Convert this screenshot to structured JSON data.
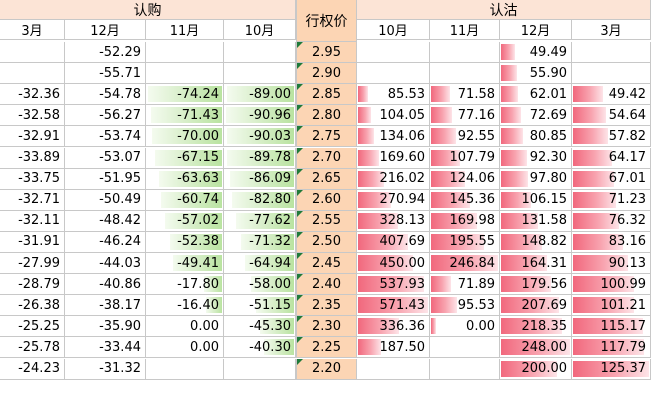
{
  "headers": {
    "call_group": "认购",
    "strike": "行权价",
    "put_group": "认沽",
    "call_months": [
      "3月",
      "12月",
      "11月",
      "10月"
    ],
    "put_months": [
      "10月",
      "11月",
      "12月",
      "3月"
    ]
  },
  "colors": {
    "group_header_bg": "#fce4d6",
    "strike_bg": "#fcd5b4",
    "put_bar": "#f1687d",
    "call_bar": "#b9e3a0",
    "strike_marker": "#1f7a3a"
  },
  "rows": [
    {
      "strike": "2.95",
      "calls": [
        "",
        "-52.29",
        "",
        ""
      ],
      "puts": [
        "",
        "",
        "49.49",
        ""
      ]
    },
    {
      "strike": "2.90",
      "calls": [
        "",
        "-55.71",
        "",
        ""
      ],
      "puts": [
        "",
        "",
        "55.90",
        ""
      ]
    },
    {
      "strike": "2.85",
      "calls": [
        "-32.36",
        "-54.78",
        "-74.24",
        "-89.00"
      ],
      "puts": [
        "85.53",
        "71.58",
        "62.01",
        "49.42"
      ]
    },
    {
      "strike": "2.80",
      "calls": [
        "-32.58",
        "-56.27",
        "-71.43",
        "-90.96"
      ],
      "puts": [
        "104.05",
        "77.16",
        "72.69",
        "54.64"
      ]
    },
    {
      "strike": "2.75",
      "calls": [
        "-32.91",
        "-53.74",
        "-70.00",
        "-90.03"
      ],
      "puts": [
        "134.06",
        "92.55",
        "80.85",
        "57.82"
      ]
    },
    {
      "strike": "2.70",
      "calls": [
        "-33.89",
        "-53.07",
        "-67.15",
        "-89.78"
      ],
      "puts": [
        "169.60",
        "107.79",
        "92.30",
        "64.17"
      ]
    },
    {
      "strike": "2.65",
      "calls": [
        "-33.75",
        "-51.95",
        "-63.63",
        "-86.09"
      ],
      "puts": [
        "216.02",
        "124.06",
        "97.80",
        "67.01"
      ]
    },
    {
      "strike": "2.60",
      "calls": [
        "-32.71",
        "-50.49",
        "-60.74",
        "-82.80"
      ],
      "puts": [
        "270.94",
        "145.36",
        "106.15",
        "71.23"
      ]
    },
    {
      "strike": "2.55",
      "calls": [
        "-32.11",
        "-48.42",
        "-57.02",
        "-77.62"
      ],
      "puts": [
        "328.13",
        "169.98",
        "131.58",
        "76.32"
      ]
    },
    {
      "strike": "2.50",
      "calls": [
        "-31.91",
        "-46.24",
        "-52.38",
        "-71.32"
      ],
      "puts": [
        "407.69",
        "195.55",
        "148.82",
        "83.16"
      ]
    },
    {
      "strike": "2.45",
      "calls": [
        "-27.99",
        "-44.03",
        "-49.41",
        "-64.94"
      ],
      "puts": [
        "450.00",
        "246.84",
        "164.31",
        "90.13"
      ]
    },
    {
      "strike": "2.40",
      "calls": [
        "-28.79",
        "-40.86",
        "-17.80",
        "-58.00"
      ],
      "puts": [
        "537.93",
        "71.89",
        "179.56",
        "100.99"
      ]
    },
    {
      "strike": "2.35",
      "calls": [
        "-26.38",
        "-38.17",
        "-16.40",
        "-51.15"
      ],
      "puts": [
        "571.43",
        "95.53",
        "207.69",
        "101.21"
      ]
    },
    {
      "strike": "2.30",
      "calls": [
        "-25.25",
        "-35.90",
        "0.00",
        "-45.30"
      ],
      "puts": [
        "336.36",
        "0.00",
        "218.35",
        "115.17"
      ]
    },
    {
      "strike": "2.25",
      "calls": [
        "-25.78",
        "-33.44",
        "0.00",
        "-40.30"
      ],
      "puts": [
        "187.50",
        "",
        "248.00",
        "117.79"
      ]
    },
    {
      "strike": "2.20",
      "calls": [
        "-24.23",
        "-31.32",
        "",
        ""
      ],
      "puts": [
        "",
        "",
        "200.00",
        "125.37"
      ]
    }
  ]
}
